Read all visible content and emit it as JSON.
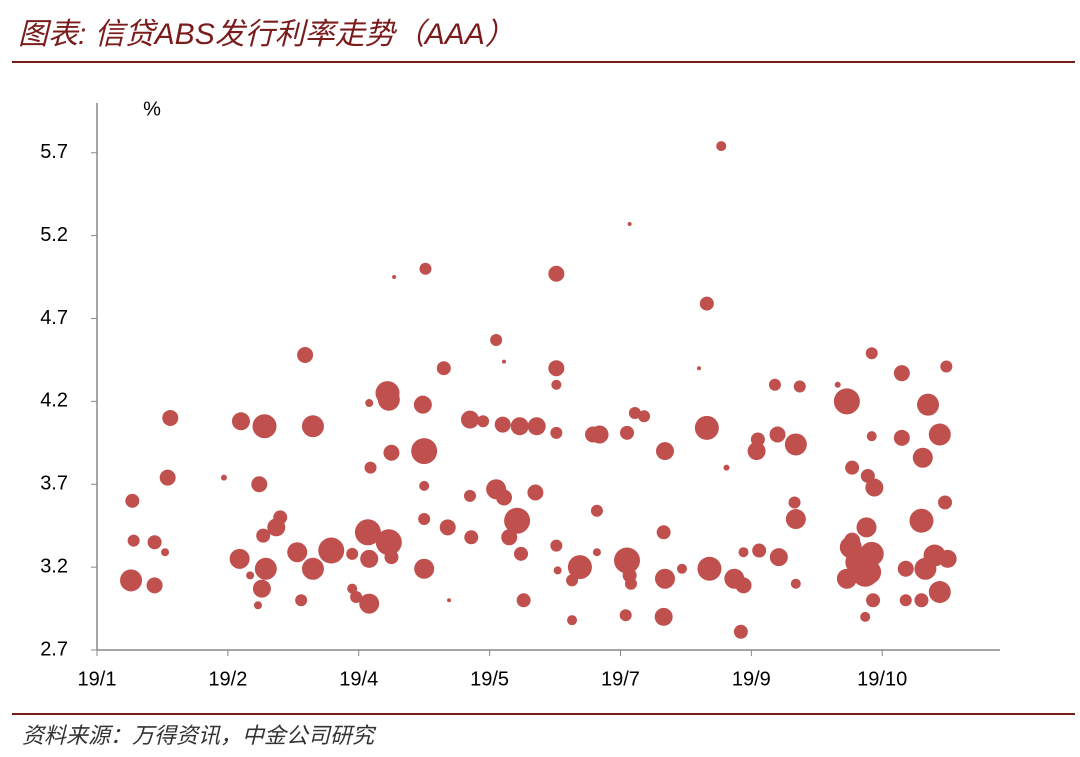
{
  "chart_data": {
    "type": "scatter",
    "title": "图表: 信贷ABS发行利率走势（AAA）",
    "y_unit": "%",
    "source": "资料来源：万得资讯，中金公司研究",
    "color": "#c0504d",
    "xlim": [
      0,
      6.9
    ],
    "xticks": [
      {
        "value": 0,
        "label": "19/1"
      },
      {
        "value": 1,
        "label": "19/2"
      },
      {
        "value": 2,
        "label": "19/4"
      },
      {
        "value": 3,
        "label": "19/5"
      },
      {
        "value": 4,
        "label": "19/7"
      },
      {
        "value": 5,
        "label": "19/9"
      },
      {
        "value": 6,
        "label": "19/10"
      }
    ],
    "ylim": [
      2.7,
      6.0
    ],
    "yticks": [
      2.7,
      3.2,
      3.7,
      4.2,
      4.7,
      5.2,
      5.7
    ],
    "x": [
      0.26,
      0.27,
      0.28,
      0.44,
      0.44,
      0.52,
      0.54,
      0.56,
      0.97,
      1.1,
      1.09,
      1.17,
      1.23,
      1.26,
      1.24,
      1.28,
      1.29,
      1.27,
      1.37,
      1.4,
      1.53,
      1.56,
      1.59,
      1.65,
      1.65,
      1.79,
      1.95,
      1.95,
      1.98,
      2.07,
      2.08,
      2.08,
      2.08,
      2.09,
      2.22,
      2.23,
      2.23,
      2.25,
      2.27,
      2.25,
      2.49,
      2.5,
      2.5,
      2.51,
      2.5,
      2.5,
      2.65,
      2.68,
      2.69,
      2.85,
      2.85,
      2.86,
      2.95,
      3.05,
      3.05,
      3.1,
      3.11,
      3.11,
      3.15,
      3.21,
      3.23,
      3.24,
      3.26,
      3.36,
      3.35,
      3.51,
      3.51,
      3.51,
      3.51,
      3.51,
      3.52,
      3.63,
      3.63,
      3.69,
      3.79,
      3.82,
      3.84,
      3.82,
      4.04,
      4.05,
      4.05,
      4.07,
      4.07,
      4.08,
      4.11,
      4.18,
      4.34,
      4.33,
      4.33,
      4.34,
      4.47,
      4.6,
      4.66,
      4.66,
      4.68,
      4.77,
      4.81,
      4.87,
      4.92,
      4.94,
      4.94,
      5.04,
      5.05,
      5.06,
      5.18,
      5.2,
      5.21,
      5.33,
      5.34,
      5.34,
      5.34,
      5.37,
      5.66,
      5.73,
      5.73,
      5.77,
      5.76,
      5.81,
      5.87,
      5.88,
      5.87,
      5.89,
      5.92,
      5.92,
      5.94,
      5.92,
      5.93,
      6.15,
      6.15,
      6.18,
      6.18,
      6.3,
      6.3,
      6.31,
      6.33,
      6.35,
      6.4,
      6.44,
      6.44,
      6.48,
      6.49,
      6.5,
      5.77,
      5.9
    ],
    "values": [
      3.12,
      3.6,
      3.36,
      3.09,
      3.35,
      3.29,
      3.74,
      4.1,
      3.74,
      4.08,
      3.25,
      3.15,
      2.97,
      3.07,
      3.7,
      4.05,
      3.19,
      3.39,
      3.44,
      3.5,
      3.29,
      3.0,
      4.48,
      4.05,
      3.19,
      3.3,
      3.28,
      3.07,
      3.02,
      3.41,
      4.19,
      3.25,
      2.98,
      3.8,
      4.25,
      4.21,
      3.35,
      3.89,
      4.95,
      3.26,
      4.18,
      3.9,
      3.19,
      5.0,
      3.69,
      3.49,
      4.4,
      3.44,
      3.0,
      4.09,
      3.63,
      3.38,
      4.08,
      4.57,
      3.67,
      4.06,
      3.62,
      4.44,
      3.38,
      3.48,
      4.05,
      3.28,
      3.0,
      4.05,
      3.65,
      4.97,
      4.4,
      4.3,
      4.01,
      3.33,
      3.18,
      3.12,
      2.88,
      3.2,
      4.0,
      3.54,
      4.0,
      3.29,
      2.91,
      4.01,
      3.24,
      5.27,
      3.15,
      3.1,
      4.13,
      4.11,
      3.9,
      3.41,
      2.9,
      3.13,
      3.19,
      4.4,
      4.79,
      4.04,
      3.19,
      5.74,
      3.8,
      3.13,
      2.81,
      3.09,
      3.29,
      3.9,
      3.97,
      3.3,
      4.3,
      4.0,
      3.26,
      3.59,
      3.49,
      3.94,
      3.1,
      4.29,
      4.3,
      4.2,
      3.13,
      3.8,
      3.32,
      3.23,
      3.16,
      3.44,
      2.9,
      3.75,
      3.28,
      3.99,
      3.68,
      4.49,
      3.0,
      3.98,
      4.37,
      3.19,
      3.0,
      3.48,
      3.0,
      3.86,
      3.19,
      4.18,
      3.27,
      3.05,
      4.0,
      3.59,
      4.41,
      3.25,
      3.36,
      3.17
    ],
    "sizes": [
      11,
      7,
      6,
      8,
      7,
      4,
      8,
      8,
      3,
      9,
      10,
      4,
      4,
      9,
      8,
      12,
      11,
      7,
      9,
      7,
      10,
      6,
      8,
      11,
      11,
      13,
      6,
      5,
      6,
      13,
      4,
      9,
      10,
      6,
      12,
      11,
      13,
      8,
      2,
      7,
      9,
      13,
      10,
      6,
      5,
      6,
      7,
      8,
      2,
      9,
      6,
      7,
      6,
      6,
      10,
      8,
      8,
      2,
      8,
      13,
      9,
      7,
      7,
      9,
      8,
      8,
      8,
      5,
      6,
      6,
      4,
      6,
      5,
      12,
      8,
      6,
      9,
      4,
      6,
      7,
      13,
      2,
      7,
      6,
      6,
      6,
      9,
      7,
      9,
      10,
      5,
      2,
      7,
      12,
      12,
      5,
      3,
      10,
      7,
      8,
      5,
      9,
      7,
      7,
      6,
      8,
      9,
      6,
      10,
      11,
      5,
      6,
      3,
      13,
      10,
      7,
      11,
      12,
      13,
      10,
      5,
      7,
      12,
      5,
      9,
      6,
      7,
      8,
      8,
      8,
      6,
      12,
      7,
      10,
      11,
      11,
      11,
      11,
      11,
      7,
      6,
      9,
      8,
      12
    ]
  }
}
